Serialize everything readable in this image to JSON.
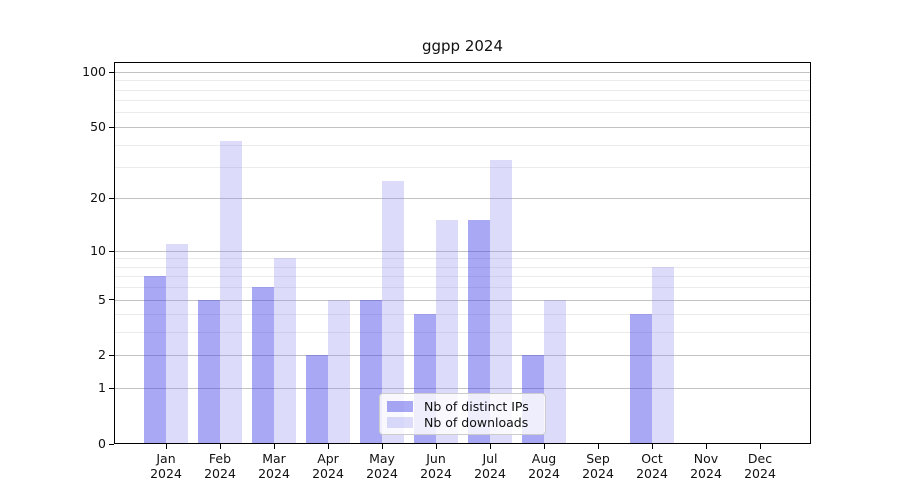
{
  "chart_data": {
    "type": "bar",
    "title": "ggpp 2024",
    "categories": [
      "Jan 2024",
      "Feb 2024",
      "Mar 2024",
      "Apr 2024",
      "May 2024",
      "Jun 2024",
      "Jul 2024",
      "Aug 2024",
      "Sep 2024",
      "Oct 2024",
      "Nov 2024",
      "Dec 2024"
    ],
    "series": [
      {
        "name": "Nb of distinct IPs",
        "color": "rgba(62,62,230,0.45)",
        "values": [
          7,
          5,
          6,
          2,
          5,
          4,
          15,
          2,
          0,
          4,
          0,
          0
        ]
      },
      {
        "name": "Nb of downloads",
        "color": "rgba(138,138,238,0.30)",
        "values": [
          11,
          42,
          9,
          5,
          25,
          15,
          33,
          5,
          0,
          8,
          0,
          0
        ]
      }
    ],
    "xlabel": "",
    "ylabel": "",
    "yscale": "log1p",
    "ylim": [
      0,
      113
    ],
    "yticks": [
      0,
      1,
      2,
      5,
      10,
      20,
      50,
      100
    ],
    "minor_gridlines": [
      3,
      4,
      6,
      7,
      8,
      9,
      30,
      40,
      60,
      70,
      80,
      90
    ],
    "grid": true,
    "legend_position": "lower center"
  }
}
